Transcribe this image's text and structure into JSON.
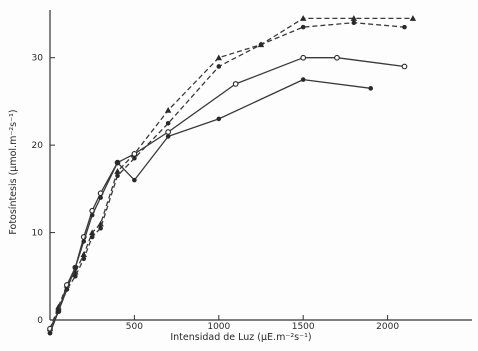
{
  "chart_data": {
    "type": "line",
    "title": "",
    "xlabel": "Intensidad de Luz (μE.m⁻²s⁻¹)",
    "ylabel": "Fotosíntesis (μmol.m⁻²s⁻¹)",
    "xlim": [
      0,
      2500
    ],
    "ylim": [
      0,
      35
    ],
    "grid": false,
    "legend": "none",
    "x_ticks": [
      0,
      500,
      1000,
      1500,
      2000
    ],
    "x_tick_labels": [
      "0",
      "500",
      "1000",
      "1500",
      "2000"
    ],
    "y_ticks": [
      0,
      10,
      20,
      30
    ],
    "y_tick_labels": [
      "0",
      "10",
      "20",
      "30"
    ],
    "series": [
      {
        "style": "dashed",
        "marker": "triangle",
        "x": [
          0,
          50,
          100,
          150,
          200,
          250,
          300,
          400,
          500,
          700,
          1000,
          1250,
          1500,
          1800,
          2150
        ],
        "y": [
          -1,
          1.5,
          4,
          5.5,
          7.5,
          10,
          11,
          17,
          19,
          24,
          30,
          31.5,
          34.5,
          34.5,
          34.5
        ]
      },
      {
        "style": "dashed",
        "marker": "circle",
        "x": [
          0,
          50,
          100,
          150,
          200,
          250,
          300,
          400,
          500,
          700,
          1000,
          1250,
          1500,
          1800,
          2100
        ],
        "y": [
          -1.5,
          1,
          3.5,
          5,
          7,
          9.5,
          10.5,
          16.5,
          18.5,
          22.5,
          29,
          31.5,
          33.5,
          34,
          33.5
        ]
      },
      {
        "style": "solid",
        "marker": "circle-open",
        "x": [
          0,
          50,
          100,
          150,
          200,
          250,
          300,
          400,
          500,
          700,
          1100,
          1500,
          1700,
          2100
        ],
        "y": [
          -1,
          1,
          4,
          6,
          9.5,
          12.5,
          14.5,
          18,
          19,
          21.5,
          27,
          30,
          30,
          29
        ]
      },
      {
        "style": "solid",
        "marker": "circle",
        "x": [
          0,
          50,
          100,
          150,
          200,
          250,
          300,
          400,
          500,
          700,
          1000,
          1500,
          1900
        ],
        "y": [
          -1.5,
          1,
          3.5,
          6,
          9,
          12,
          14,
          18,
          16,
          21,
          23,
          27.5,
          26.5
        ]
      }
    ]
  }
}
